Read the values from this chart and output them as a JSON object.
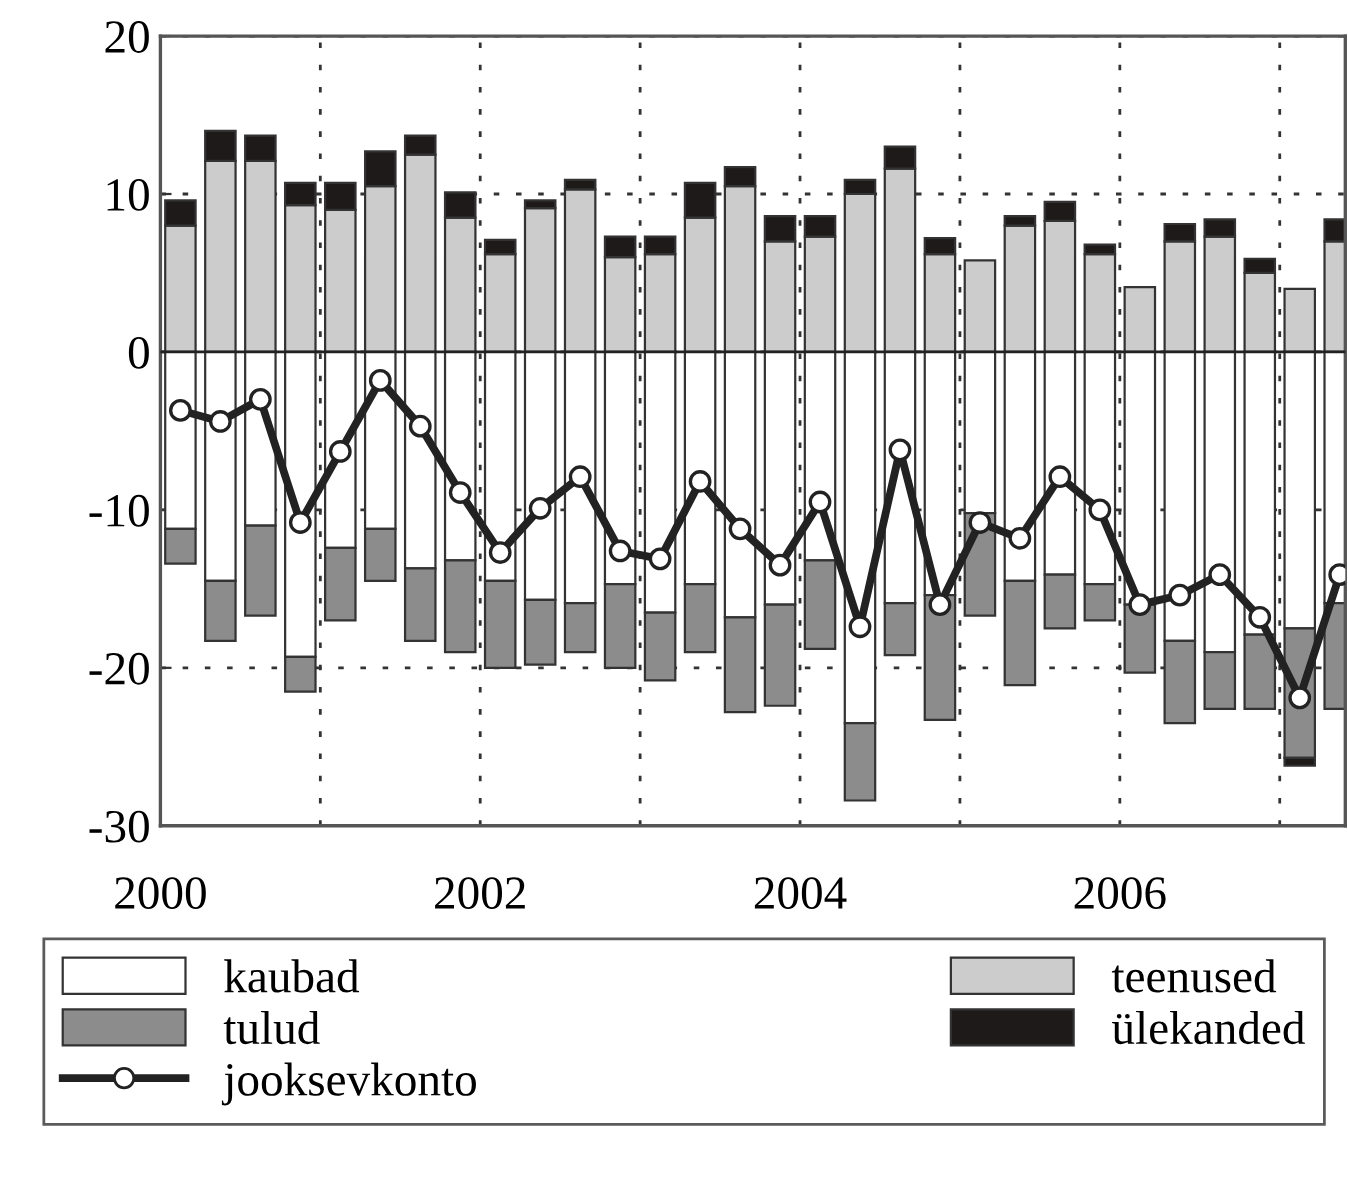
{
  "chart_data": {
    "type": "bar",
    "stacked": true,
    "x": [
      2000.125,
      2000.375,
      2000.625,
      2000.875,
      2001.125,
      2001.375,
      2001.625,
      2001.875,
      2002.125,
      2002.375,
      2002.625,
      2002.875,
      2003.125,
      2003.375,
      2003.625,
      2003.875,
      2004.125,
      2004.375,
      2004.625,
      2004.875,
      2005.125,
      2005.375,
      2005.625,
      2005.875,
      2006.125,
      2006.375,
      2006.625,
      2006.875,
      2007.125,
      2007.375
    ],
    "series": [
      {
        "name": "kaubad",
        "color": "#ffffff",
        "values": [
          -11.2,
          -14.5,
          -11.0,
          -19.3,
          -12.4,
          -11.2,
          -13.7,
          -13.2,
          -14.5,
          -15.7,
          -15.9,
          -14.7,
          -16.5,
          -14.7,
          -16.8,
          -16.0,
          -13.2,
          -23.5,
          -15.9,
          -15.4,
          -10.2,
          -14.5,
          -14.1,
          -14.7,
          -16.0,
          -18.3,
          -19.0,
          -17.9,
          -17.5,
          -15.9
        ]
      },
      {
        "name": "teenused",
        "color": "#cccccc",
        "values": [
          8.0,
          12.1,
          12.1,
          9.3,
          9.0,
          10.5,
          12.5,
          8.5,
          6.2,
          9.1,
          10.3,
          6.0,
          6.2,
          8.5,
          10.5,
          7.0,
          7.3,
          10.0,
          11.6,
          6.2,
          5.8,
          8.0,
          8.3,
          6.2,
          4.1,
          7.0,
          7.3,
          5.0,
          4.0,
          7.0
        ]
      },
      {
        "name": "tulud",
        "color": "#8c8c8c",
        "values": [
          -2.2,
          -3.8,
          -5.7,
          -2.2,
          -4.6,
          -3.3,
          -4.6,
          -5.8,
          -5.5,
          -4.1,
          -3.1,
          -5.3,
          -4.3,
          -4.3,
          -6.0,
          -6.4,
          -5.6,
          -4.9,
          -3.3,
          -7.9,
          -6.5,
          -6.6,
          -3.4,
          -2.3,
          -4.3,
          -5.2,
          -3.6,
          -4.7,
          -8.2,
          -6.7
        ]
      },
      {
        "name": "ülekanded",
        "color": "#1e1a1a",
        "values": [
          1.6,
          1.9,
          1.6,
          1.4,
          1.7,
          2.2,
          1.2,
          1.6,
          0.9,
          0.5,
          0.6,
          1.3,
          1.1,
          2.2,
          1.2,
          1.6,
          1.3,
          0.9,
          1.4,
          1.0,
          null,
          0.6,
          1.2,
          0.6,
          null,
          1.1,
          1.1,
          0.9,
          -0.5,
          1.4
        ]
      },
      {
        "name": "jooksevkonto",
        "type": "line",
        "color": "#222222",
        "marker": "circle",
        "values": [
          -3.7,
          -4.4,
          -3.0,
          -10.8,
          -6.3,
          -1.8,
          -4.7,
          -8.9,
          -12.7,
          -9.9,
          -7.9,
          -12.6,
          -13.1,
          -8.2,
          -11.2,
          -13.5,
          -9.5,
          -17.4,
          -6.2,
          -16.0,
          -10.8,
          -11.8,
          -7.9,
          -10.0,
          -16.0,
          -15.4,
          -14.1,
          -16.8,
          -21.9,
          -14.1
        ]
      }
    ],
    "xlim": [
      2000,
      2007.41
    ],
    "xticks": [
      2000,
      {
        "value": 2001,
        "label": null
      },
      2002,
      {
        "value": 2003,
        "label": null
      },
      2004,
      {
        "value": 2005,
        "label": null
      },
      2006,
      {
        "value": 2007,
        "label": null
      }
    ],
    "ylim": [
      -30,
      20
    ],
    "yticks": [
      -30,
      -20,
      -10,
      0,
      10,
      20
    ],
    "grid": true,
    "legend": "bottom"
  }
}
